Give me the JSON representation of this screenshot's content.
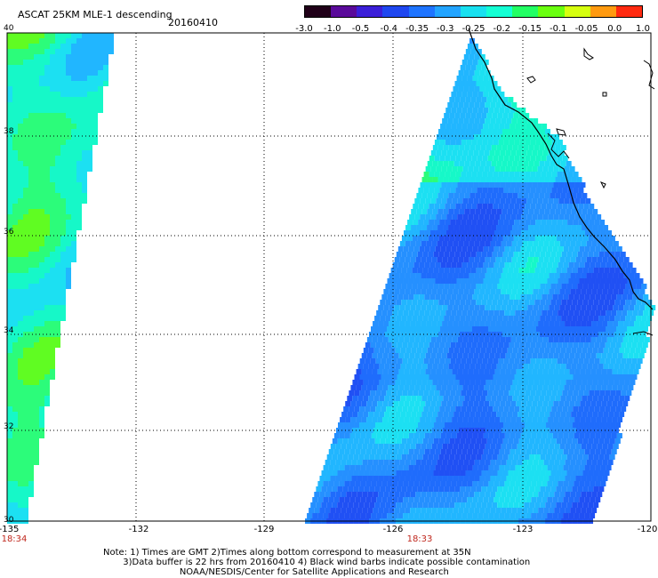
{
  "header": {
    "title": "ASCAT 25KM MLE-1 descending",
    "date": "20160410"
  },
  "colorbar": {
    "labels": [
      "-3.0",
      "-1.0",
      "-0.5",
      "-0.4",
      "-0.35",
      "-0.3",
      "-0.25",
      "-0.2",
      "-0.15",
      "-0.1",
      "-0.05",
      "0.0",
      "1.0"
    ],
    "colors": [
      "#200018",
      "#5a0a9a",
      "#3b1fd8",
      "#1f47f0",
      "#1e74ff",
      "#22a4ff",
      "#18e0f0",
      "#14ffd4",
      "#22ff64",
      "#6aff10",
      "#d6ff10",
      "#ff9a10",
      "#ff2a10"
    ]
  },
  "axes": {
    "x_labels": [
      "-135",
      "-132",
      "-129",
      "-126",
      "-123",
      "-120"
    ],
    "y_labels": [
      "40",
      "38",
      "36",
      "34",
      "32",
      "30"
    ]
  },
  "overpass_times": {
    "left": "18:34",
    "center": "18:33"
  },
  "notes": {
    "line1": "Note: 1) Times are GMT 2)Times along bottom correspond to measurement at 35N",
    "line2": "3)Data buffer is 22 hrs from 20160410 4) Black wind barbs indicate possible contamination",
    "line3": "NOAA/NESDIS/Center for Satellite Applications and Research"
  }
}
